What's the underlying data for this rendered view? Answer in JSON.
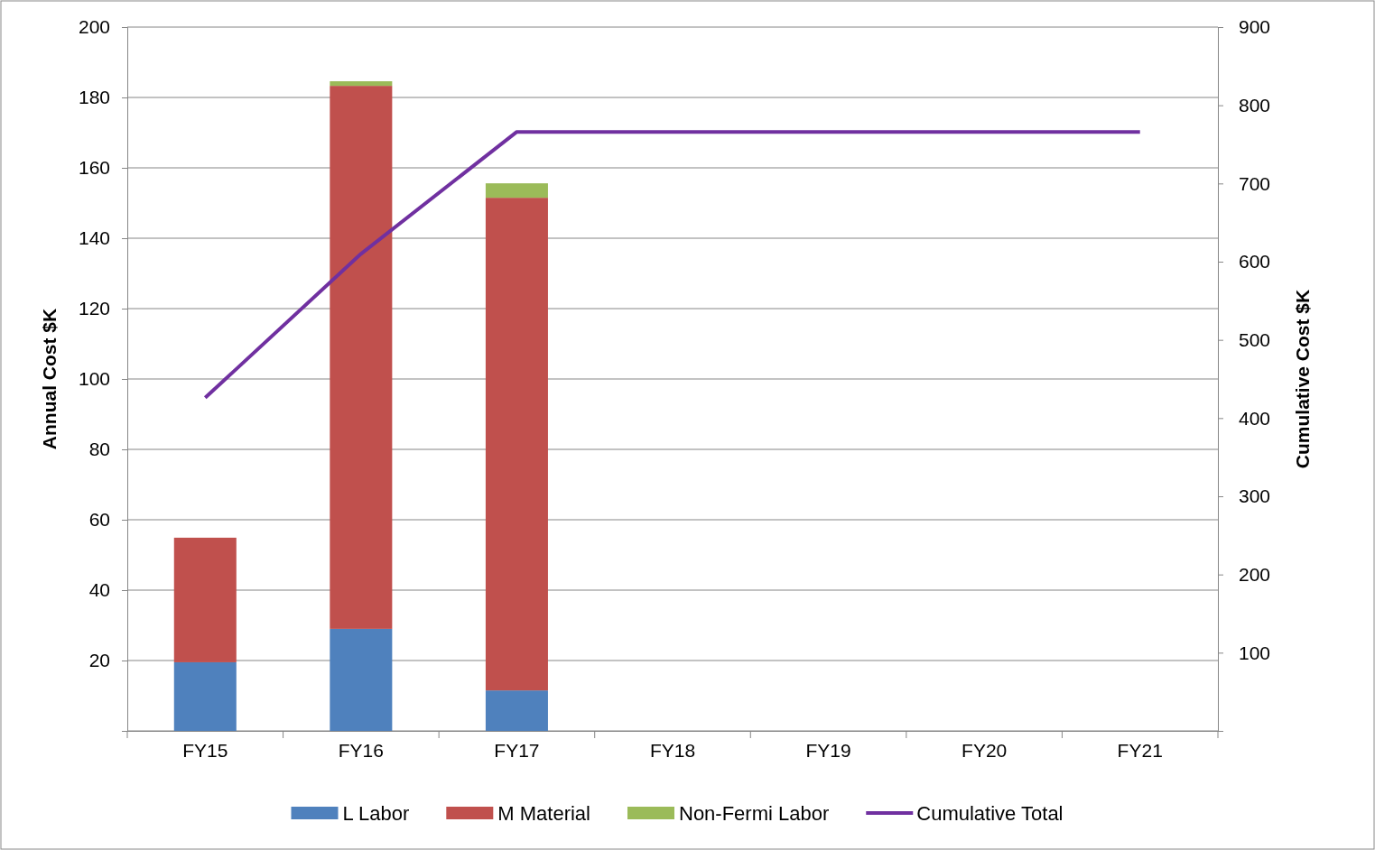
{
  "chart_data": {
    "type": "bar",
    "stacked": true,
    "categories": [
      "FY15",
      "FY16",
      "FY17",
      "FY18",
      "FY19",
      "FY20",
      "FY21"
    ],
    "series": [
      {
        "name": "L Labor",
        "color": "#4f81bd",
        "values": [
          19.5,
          29.0,
          11.5,
          null,
          null,
          null,
          null
        ]
      },
      {
        "name": "M Material",
        "color": "#c0504d",
        "values": [
          35.4,
          154.3,
          140.0,
          null,
          null,
          null,
          null
        ]
      },
      {
        "name": "Non-Fermi Labor",
        "color": "#9bbb59",
        "values": [
          null,
          1.3,
          4.1,
          null,
          null,
          null,
          null
        ]
      },
      {
        "name": "Cumulative Total",
        "color": "#7030a0",
        "type": "line",
        "axis": "y2",
        "values": [
          426,
          610,
          766,
          766,
          766,
          766,
          766
        ]
      }
    ],
    "ylabel": "Annual Cost $K",
    "y2label": "Cumulative Cost $K",
    "ylim": [
      0,
      200
    ],
    "yticks": [
      {
        "value": 0,
        "label": null
      },
      20,
      40,
      60,
      80,
      100,
      120,
      140,
      160,
      180,
      200
    ],
    "y2lim": [
      0,
      900
    ],
    "y2ticks": [
      {
        "value": 0,
        "label": null
      },
      100,
      200,
      300,
      400,
      500,
      600,
      700,
      800,
      900
    ],
    "grid": "y",
    "legend": "bottom",
    "marker": "none",
    "line_style": "solid"
  }
}
